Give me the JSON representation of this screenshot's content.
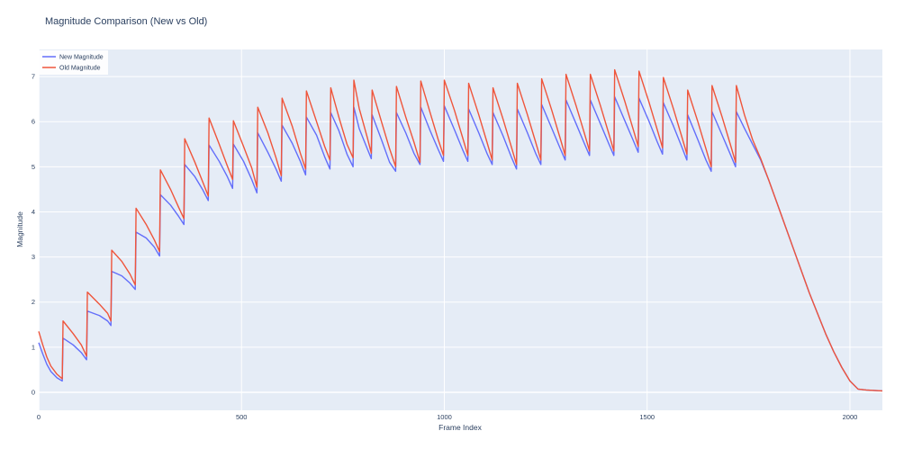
{
  "chart_data": {
    "type": "line",
    "title": "Magnitude Comparison (New vs Old)",
    "xlabel": "Frame Index",
    "ylabel": "Magnitude",
    "xlim": [
      0,
      2080
    ],
    "ylim": [
      -0.4,
      7.6
    ],
    "x_ticks": [
      0,
      500,
      1000,
      1500,
      2000
    ],
    "y_ticks": [
      0,
      1,
      2,
      3,
      4,
      5,
      6,
      7
    ],
    "grid": true,
    "legend_position": "top-left",
    "background": "#E5ECF6",
    "series": [
      {
        "name": "New Magnitude",
        "color": "#636EFA",
        "points": [
          [
            0,
            1.1
          ],
          [
            10,
            0.85
          ],
          [
            20,
            0.62
          ],
          [
            30,
            0.46
          ],
          [
            45,
            0.32
          ],
          [
            58,
            0.25
          ],
          [
            60,
            1.2
          ],
          [
            85,
            1.05
          ],
          [
            105,
            0.88
          ],
          [
            118,
            0.72
          ],
          [
            120,
            1.8
          ],
          [
            150,
            1.7
          ],
          [
            170,
            1.58
          ],
          [
            178,
            1.48
          ],
          [
            180,
            2.68
          ],
          [
            205,
            2.58
          ],
          [
            225,
            2.42
          ],
          [
            238,
            2.28
          ],
          [
            240,
            3.55
          ],
          [
            265,
            3.42
          ],
          [
            285,
            3.22
          ],
          [
            298,
            3.02
          ],
          [
            300,
            4.38
          ],
          [
            325,
            4.15
          ],
          [
            345,
            3.9
          ],
          [
            358,
            3.72
          ],
          [
            360,
            5.05
          ],
          [
            385,
            4.78
          ],
          [
            405,
            4.48
          ],
          [
            418,
            4.25
          ],
          [
            420,
            5.48
          ],
          [
            445,
            5.12
          ],
          [
            465,
            4.78
          ],
          [
            478,
            4.52
          ],
          [
            480,
            5.5
          ],
          [
            505,
            5.12
          ],
          [
            525,
            4.72
          ],
          [
            538,
            4.42
          ],
          [
            540,
            5.75
          ],
          [
            565,
            5.32
          ],
          [
            585,
            4.95
          ],
          [
            598,
            4.68
          ],
          [
            600,
            5.92
          ],
          [
            625,
            5.52
          ],
          [
            645,
            5.12
          ],
          [
            658,
            4.82
          ],
          [
            660,
            6.1
          ],
          [
            685,
            5.7
          ],
          [
            705,
            5.22
          ],
          [
            718,
            4.95
          ],
          [
            720,
            6.2
          ],
          [
            740,
            5.8
          ],
          [
            760,
            5.28
          ],
          [
            775,
            5.0
          ],
          [
            777,
            6.32
          ],
          [
            790,
            5.85
          ],
          [
            810,
            5.4
          ],
          [
            820,
            5.18
          ],
          [
            822,
            6.15
          ],
          [
            845,
            5.6
          ],
          [
            865,
            5.1
          ],
          [
            880,
            4.9
          ],
          [
            882,
            6.2
          ],
          [
            905,
            5.75
          ],
          [
            925,
            5.3
          ],
          [
            940,
            5.05
          ],
          [
            942,
            6.32
          ],
          [
            965,
            5.8
          ],
          [
            985,
            5.38
          ],
          [
            998,
            5.12
          ],
          [
            1000,
            6.35
          ],
          [
            1025,
            5.82
          ],
          [
            1045,
            5.38
          ],
          [
            1058,
            5.12
          ],
          [
            1060,
            6.28
          ],
          [
            1085,
            5.75
          ],
          [
            1105,
            5.3
          ],
          [
            1118,
            5.05
          ],
          [
            1120,
            6.2
          ],
          [
            1145,
            5.68
          ],
          [
            1165,
            5.22
          ],
          [
            1178,
            4.95
          ],
          [
            1180,
            6.28
          ],
          [
            1205,
            5.75
          ],
          [
            1225,
            5.3
          ],
          [
            1238,
            5.05
          ],
          [
            1240,
            6.38
          ],
          [
            1265,
            5.85
          ],
          [
            1285,
            5.42
          ],
          [
            1298,
            5.15
          ],
          [
            1300,
            6.48
          ],
          [
            1325,
            5.95
          ],
          [
            1345,
            5.52
          ],
          [
            1358,
            5.25
          ],
          [
            1360,
            6.48
          ],
          [
            1385,
            5.95
          ],
          [
            1405,
            5.52
          ],
          [
            1418,
            5.25
          ],
          [
            1420,
            6.55
          ],
          [
            1445,
            6.02
          ],
          [
            1465,
            5.6
          ],
          [
            1478,
            5.32
          ],
          [
            1480,
            6.52
          ],
          [
            1505,
            6.0
          ],
          [
            1525,
            5.55
          ],
          [
            1538,
            5.28
          ],
          [
            1540,
            6.42
          ],
          [
            1565,
            5.9
          ],
          [
            1585,
            5.45
          ],
          [
            1598,
            5.15
          ],
          [
            1600,
            6.15
          ],
          [
            1625,
            5.6
          ],
          [
            1645,
            5.15
          ],
          [
            1658,
            4.9
          ],
          [
            1660,
            6.22
          ],
          [
            1685,
            5.7
          ],
          [
            1705,
            5.28
          ],
          [
            1718,
            5.0
          ],
          [
            1720,
            6.22
          ],
          [
            1740,
            5.85
          ],
          [
            1760,
            5.5
          ],
          [
            1780,
            5.15
          ],
          [
            1800,
            4.7
          ],
          [
            1820,
            4.2
          ],
          [
            1840,
            3.7
          ],
          [
            1860,
            3.2
          ],
          [
            1880,
            2.7
          ],
          [
            1900,
            2.2
          ],
          [
            1920,
            1.75
          ],
          [
            1940,
            1.3
          ],
          [
            1960,
            0.9
          ],
          [
            1980,
            0.55
          ],
          [
            2000,
            0.25
          ],
          [
            2020,
            0.07
          ],
          [
            2040,
            0.05
          ],
          [
            2060,
            0.04
          ],
          [
            2080,
            0.03
          ]
        ]
      },
      {
        "name": "Old Magnitude",
        "color": "#EF553B",
        "points": [
          [
            0,
            1.35
          ],
          [
            10,
            1.05
          ],
          [
            20,
            0.78
          ],
          [
            30,
            0.58
          ],
          [
            45,
            0.4
          ],
          [
            58,
            0.3
          ],
          [
            60,
            1.58
          ],
          [
            85,
            1.3
          ],
          [
            105,
            1.05
          ],
          [
            118,
            0.8
          ],
          [
            120,
            2.22
          ],
          [
            150,
            1.95
          ],
          [
            170,
            1.75
          ],
          [
            178,
            1.58
          ],
          [
            180,
            3.15
          ],
          [
            205,
            2.9
          ],
          [
            225,
            2.62
          ],
          [
            238,
            2.38
          ],
          [
            240,
            4.08
          ],
          [
            265,
            3.72
          ],
          [
            285,
            3.38
          ],
          [
            298,
            3.12
          ],
          [
            300,
            4.93
          ],
          [
            325,
            4.5
          ],
          [
            345,
            4.1
          ],
          [
            358,
            3.85
          ],
          [
            360,
            5.62
          ],
          [
            385,
            5.1
          ],
          [
            405,
            4.65
          ],
          [
            418,
            4.35
          ],
          [
            420,
            6.08
          ],
          [
            445,
            5.5
          ],
          [
            465,
            5.02
          ],
          [
            478,
            4.72
          ],
          [
            480,
            6.02
          ],
          [
            505,
            5.45
          ],
          [
            525,
            4.98
          ],
          [
            538,
            4.55
          ],
          [
            540,
            6.32
          ],
          [
            565,
            5.75
          ],
          [
            585,
            5.2
          ],
          [
            598,
            4.8
          ],
          [
            600,
            6.52
          ],
          [
            625,
            5.9
          ],
          [
            645,
            5.3
          ],
          [
            658,
            4.95
          ],
          [
            660,
            6.68
          ],
          [
            685,
            6.0
          ],
          [
            705,
            5.45
          ],
          [
            718,
            5.15
          ],
          [
            720,
            6.75
          ],
          [
            740,
            6.1
          ],
          [
            760,
            5.5
          ],
          [
            775,
            5.2
          ],
          [
            777,
            6.92
          ],
          [
            790,
            6.3
          ],
          [
            810,
            5.65
          ],
          [
            820,
            5.3
          ],
          [
            822,
            6.7
          ],
          [
            845,
            6.0
          ],
          [
            865,
            5.4
          ],
          [
            880,
            5.0
          ],
          [
            882,
            6.78
          ],
          [
            905,
            6.1
          ],
          [
            925,
            5.55
          ],
          [
            940,
            5.1
          ],
          [
            942,
            6.9
          ],
          [
            965,
            6.2
          ],
          [
            985,
            5.6
          ],
          [
            998,
            5.25
          ],
          [
            1000,
            6.92
          ],
          [
            1025,
            6.25
          ],
          [
            1045,
            5.65
          ],
          [
            1058,
            5.25
          ],
          [
            1060,
            6.85
          ],
          [
            1085,
            6.15
          ],
          [
            1105,
            5.55
          ],
          [
            1118,
            5.15
          ],
          [
            1120,
            6.75
          ],
          [
            1145,
            6.05
          ],
          [
            1165,
            5.45
          ],
          [
            1178,
            5.05
          ],
          [
            1180,
            6.85
          ],
          [
            1205,
            6.15
          ],
          [
            1225,
            5.55
          ],
          [
            1238,
            5.15
          ],
          [
            1240,
            6.95
          ],
          [
            1265,
            6.25
          ],
          [
            1285,
            5.65
          ],
          [
            1298,
            5.25
          ],
          [
            1300,
            7.05
          ],
          [
            1325,
            6.35
          ],
          [
            1345,
            5.75
          ],
          [
            1358,
            5.35
          ],
          [
            1360,
            7.05
          ],
          [
            1385,
            6.35
          ],
          [
            1405,
            5.75
          ],
          [
            1418,
            5.35
          ],
          [
            1420,
            7.15
          ],
          [
            1445,
            6.45
          ],
          [
            1465,
            5.85
          ],
          [
            1478,
            5.45
          ],
          [
            1480,
            7.12
          ],
          [
            1505,
            6.42
          ],
          [
            1525,
            5.82
          ],
          [
            1538,
            5.42
          ],
          [
            1540,
            6.98
          ],
          [
            1565,
            6.28
          ],
          [
            1585,
            5.68
          ],
          [
            1598,
            5.28
          ],
          [
            1600,
            6.7
          ],
          [
            1625,
            6.0
          ],
          [
            1645,
            5.4
          ],
          [
            1658,
            5.0
          ],
          [
            1660,
            6.8
          ],
          [
            1685,
            6.1
          ],
          [
            1705,
            5.5
          ],
          [
            1718,
            5.1
          ],
          [
            1720,
            6.8
          ],
          [
            1740,
            6.15
          ],
          [
            1760,
            5.6
          ],
          [
            1780,
            5.18
          ],
          [
            1800,
            4.7
          ],
          [
            1820,
            4.2
          ],
          [
            1840,
            3.7
          ],
          [
            1860,
            3.2
          ],
          [
            1880,
            2.7
          ],
          [
            1900,
            2.2
          ],
          [
            1920,
            1.75
          ],
          [
            1940,
            1.3
          ],
          [
            1960,
            0.9
          ],
          [
            1980,
            0.55
          ],
          [
            2000,
            0.25
          ],
          [
            2020,
            0.07
          ],
          [
            2040,
            0.05
          ],
          [
            2060,
            0.04
          ],
          [
            2080,
            0.03
          ]
        ]
      }
    ]
  }
}
